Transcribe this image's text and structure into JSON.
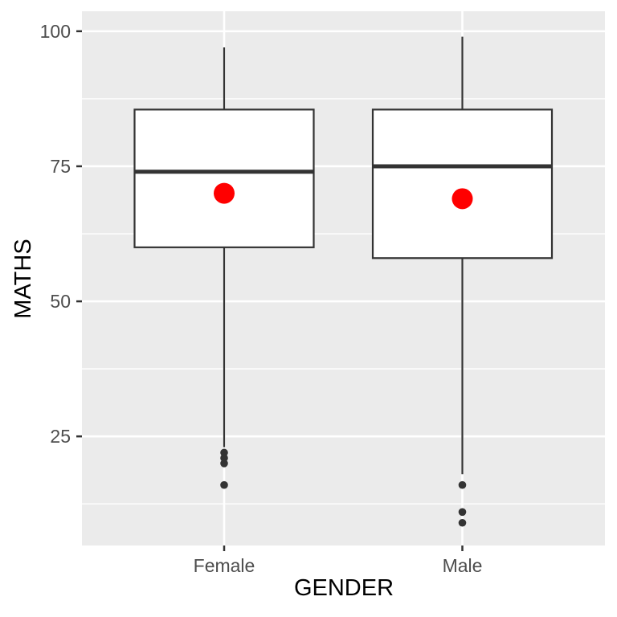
{
  "chart_data": {
    "type": "boxplot",
    "title": "",
    "xlabel": "GENDER",
    "ylabel": "MATHS",
    "categories": [
      "Female",
      "Male"
    ],
    "y_ticks": [
      {
        "label": "100",
        "value": 100
      },
      {
        "label": "75",
        "value": 75
      },
      {
        "label": "50",
        "value": 50
      },
      {
        "label": "25",
        "value": 25
      }
    ],
    "minor_gridlines": [
      87.5,
      62.5,
      37.5,
      12.5
    ],
    "ylim": [
      4.8,
      103.7
    ],
    "grid": "on",
    "legend": "none",
    "series": [
      {
        "category": "Female",
        "whisker_low": 23,
        "q1": 60,
        "median": 74,
        "q3": 85.5,
        "whisker_high": 97,
        "mean": 70,
        "outliers": [
          22,
          21,
          20,
          16
        ]
      },
      {
        "category": "Male",
        "whisker_low": 18,
        "q1": 58,
        "median": 75,
        "q3": 85.5,
        "whisker_high": 99,
        "mean": 69,
        "outliers": [
          16,
          11,
          9
        ]
      }
    ],
    "colors": {
      "panel_bg": "#EBEBEB",
      "gridline": "#FFFFFF",
      "box_border": "#333333",
      "box_fill": "#FFFFFF",
      "median_line": "#333333",
      "whisker": "#333333",
      "outlier_dot": "#333333",
      "mean_dot": "#FF0000",
      "tick_mark": "#333333",
      "tick_label": "#4D4D4D",
      "axis_title": "#000000"
    }
  }
}
